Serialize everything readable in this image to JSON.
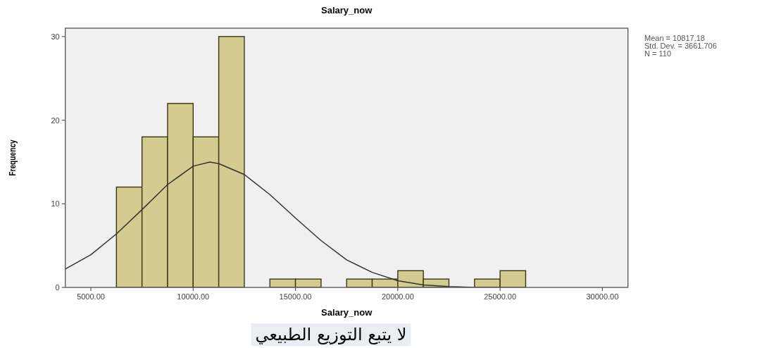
{
  "chart_data": {
    "type": "histogram",
    "title": "Salary_now",
    "xlabel": "Salary_now",
    "ylabel": "Frequency",
    "bins": [
      6250,
      7500,
      8750,
      10000,
      11250,
      12500,
      13750,
      15000,
      16250,
      17500,
      18750,
      20000,
      21250,
      22500,
      23750,
      25000,
      26250
    ],
    "values": [
      12,
      18,
      22,
      18,
      30,
      0,
      1,
      1,
      0,
      1,
      1,
      2,
      1,
      0,
      1,
      2
    ],
    "color": "#d3cb8f",
    "series": [
      {
        "type": "line",
        "color": "#333333",
        "x": [
          3750,
          5000,
          6250,
          7500,
          8750,
          10000,
          10817,
          11250,
          12500,
          13750,
          15000,
          16250,
          17500,
          18750,
          20000,
          21250,
          22500,
          23750,
          25000
        ],
        "values": [
          2.2,
          3.9,
          6.4,
          9.3,
          12.3,
          14.5,
          15.0,
          14.8,
          13.5,
          11.1,
          8.3,
          5.6,
          3.3,
          1.8,
          0.8,
          0.3,
          0.1,
          0.0,
          0.0
        ]
      }
    ],
    "xlim": [
      3750,
      31250
    ],
    "ylim": [
      0,
      31
    ],
    "xticks": [
      {
        "value": 5000,
        "label": "5000.00"
      },
      {
        "value": 10000,
        "label": "10000.00"
      },
      {
        "value": 15000,
        "label": "15000.00"
      },
      {
        "value": 20000,
        "label": "20000.00"
      },
      {
        "value": 25000,
        "label": "25000.00"
      },
      {
        "value": 30000,
        "label": "30000.00"
      }
    ],
    "yticks": [
      0,
      10,
      20,
      30
    ],
    "annotations": [
      "Mean = 10817.18",
      "Std. Dev. = 3661.706",
      "N = 110",
      "لا يتبع التوزيع الطبيعي"
    ]
  }
}
